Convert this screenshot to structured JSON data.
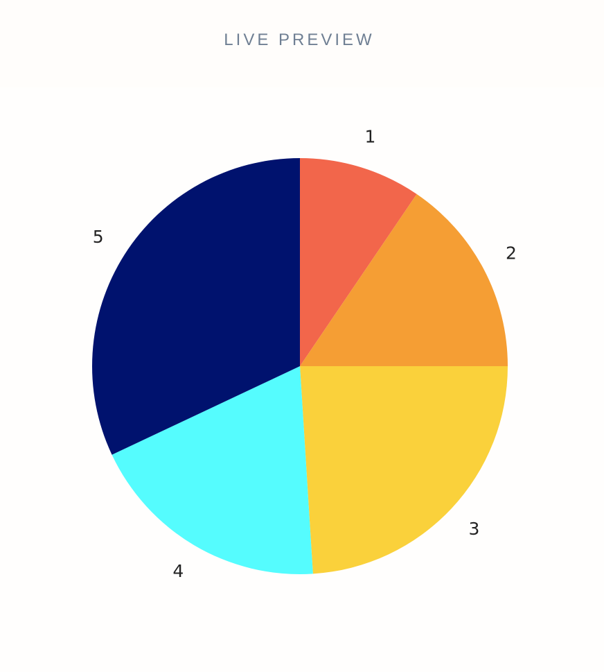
{
  "header": {
    "title": "LIVE PREVIEW"
  },
  "chart_data": {
    "type": "pie",
    "title": "",
    "slices": [
      {
        "label": "1",
        "value": 9.5,
        "color": "#f2664b"
      },
      {
        "label": "2",
        "value": 15.5,
        "color": "#f59e34"
      },
      {
        "label": "3",
        "value": 24.0,
        "color": "#fad13b"
      },
      {
        "label": "4",
        "value": 19.0,
        "color": "#55fcfe"
      },
      {
        "label": "5",
        "value": 32.0,
        "color": "#00126e"
      }
    ],
    "start_angle_deg": 0,
    "direction": "clockwise",
    "legend": "none"
  }
}
